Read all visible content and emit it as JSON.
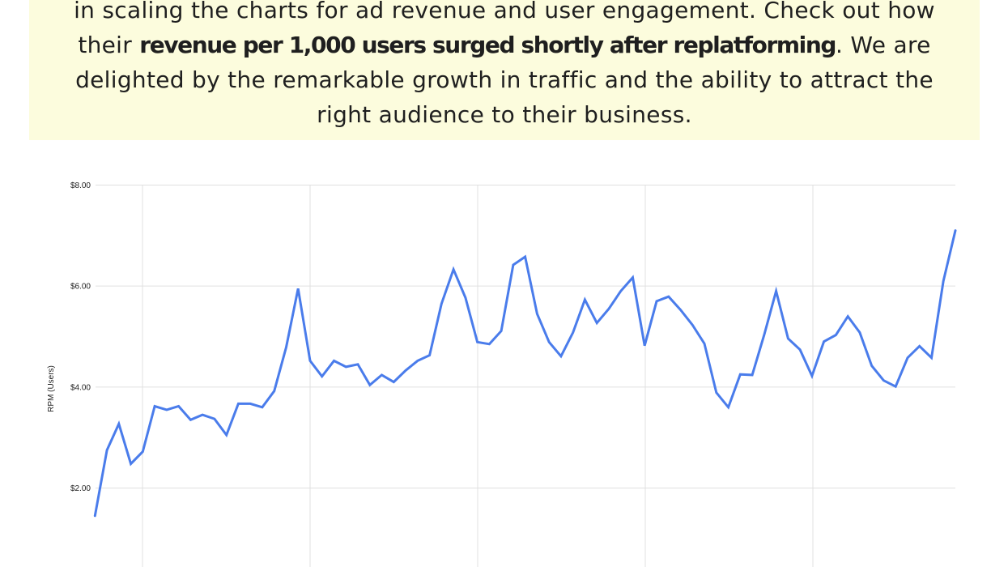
{
  "banner": {
    "background_color": "#fcfcdd",
    "lines": [
      [
        {
          "text": "in scaling the charts for ad revenue and user engagement. Check out how",
          "bold": false
        }
      ],
      [
        {
          "text": "their ",
          "bold": false
        },
        {
          "text": "revenue per 1,000 users surged shortly after replatforming",
          "bold": true
        },
        {
          "text": ". We are",
          "bold": false
        }
      ],
      [
        {
          "text": "delighted by the remarkable growth in traffic and the ability to attract the",
          "bold": false
        }
      ],
      [
        {
          "text": "right audience to their business.",
          "bold": false
        }
      ]
    ]
  },
  "chart_data": {
    "type": "line",
    "title": "",
    "xlabel": "",
    "ylabel": "RPM (Users)",
    "y_ticks": [
      {
        "label": "$2.00",
        "value": 2
      },
      {
        "label": "$4.00",
        "value": 4
      },
      {
        "label": "$6.00",
        "value": 6
      },
      {
        "label": "$8.00",
        "value": 8
      }
    ],
    "ylim": [
      0,
      8
    ],
    "grid": true,
    "legend": "none",
    "line_color": "#4a7ceb",
    "gridline_color": "#e0e0e0",
    "axis_text_color": "#222222",
    "series": [
      {
        "name": "RPM (Users)",
        "values": [
          1.45,
          2.75,
          3.27,
          2.48,
          2.72,
          3.62,
          3.55,
          3.62,
          3.35,
          3.45,
          3.37,
          3.05,
          3.67,
          3.67,
          3.6,
          3.92,
          4.79,
          5.95,
          4.52,
          4.21,
          4.52,
          4.4,
          4.45,
          4.04,
          4.24,
          4.1,
          4.33,
          4.52,
          4.63,
          5.65,
          6.33,
          5.77,
          4.89,
          4.85,
          5.11,
          6.42,
          6.58,
          5.45,
          4.89,
          4.61,
          5.08,
          5.73,
          5.27,
          5.55,
          5.9,
          6.17,
          4.82,
          5.7,
          5.79,
          5.53,
          5.23,
          4.86,
          3.89,
          3.6,
          4.25,
          4.24,
          5.03,
          5.9,
          4.96,
          4.74,
          4.22,
          4.9,
          5.03,
          5.4,
          5.08,
          4.42,
          4.13,
          4.01,
          4.58,
          4.81,
          4.58,
          6.1,
          7.1
        ]
      }
    ]
  }
}
